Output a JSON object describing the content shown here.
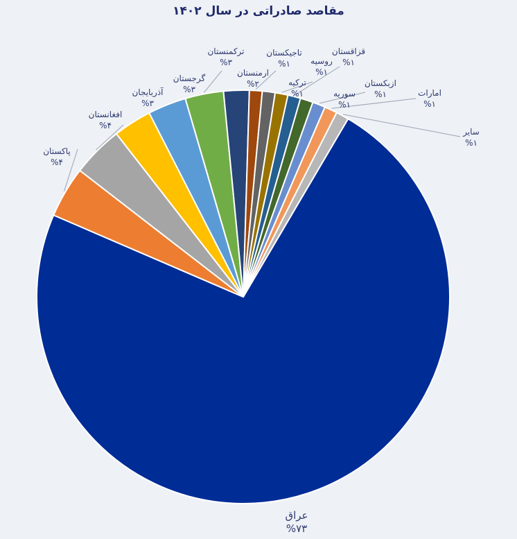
{
  "chart_data": {
    "type": "pie",
    "title": "مقاصد صادراتی در سال ۱۴۰۲",
    "slices": [
      {
        "name": "عراق",
        "value": 73,
        "label": "%۷۳",
        "color": "#002c96"
      },
      {
        "name": "پاکستان",
        "value": 4,
        "label": "%۴",
        "color": "#ed7d31"
      },
      {
        "name": "افغانستان",
        "value": 4,
        "label": "%۴",
        "color": "#a5a5a5"
      },
      {
        "name": "آذربایجان",
        "value": 3,
        "label": "%۳",
        "color": "#ffc000"
      },
      {
        "name": "گرجستان",
        "value": 3,
        "label": "%۳",
        "color": "#5b9bd5"
      },
      {
        "name": "ترکمنستان",
        "value": 3,
        "label": "%۳",
        "color": "#70ad47"
      },
      {
        "name": "ارمنستان",
        "value": 2,
        "label": "%۲",
        "color": "#264478"
      },
      {
        "name": "تاجیکستان",
        "value": 1,
        "label": "%۱",
        "color": "#9e480e"
      },
      {
        "name": "ترکیه",
        "value": 1,
        "label": "%۱",
        "color": "#636363"
      },
      {
        "name": "روسیه",
        "value": 1,
        "label": "%۱",
        "color": "#997300"
      },
      {
        "name": "قزاقستان",
        "value": 1,
        "label": "%۱",
        "color": "#255e91"
      },
      {
        "name": "سوریه",
        "value": 1,
        "label": "%۱",
        "color": "#43682b"
      },
      {
        "name": "ازبکستان",
        "value": 1,
        "label": "%۱",
        "color": "#698ed0"
      },
      {
        "name": "امارات",
        "value": 1,
        "label": "%۱",
        "color": "#f1975a"
      },
      {
        "name": "سایر",
        "value": 1,
        "label": "%۱",
        "color": "#b7b7b7"
      }
    ]
  }
}
